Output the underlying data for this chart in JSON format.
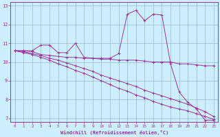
{
  "xlabel": "Windchill (Refroidissement éolien,°C)",
  "bg_color": "#cceeff",
  "line_color": "#993399",
  "grid_color": "#99bbcc",
  "xlim": [
    -0.5,
    23.5
  ],
  "ylim": [
    6.8,
    13.2
  ],
  "yticks": [
    7,
    8,
    9,
    10,
    11,
    12,
    13
  ],
  "xticks": [
    0,
    1,
    2,
    3,
    4,
    5,
    6,
    7,
    8,
    9,
    10,
    11,
    12,
    13,
    14,
    15,
    16,
    17,
    18,
    19,
    20,
    21,
    22,
    23
  ],
  "series": [
    {
      "x": [
        0,
        1,
        2,
        3,
        4,
        5,
        6,
        7,
        8,
        9,
        10,
        11,
        12,
        13,
        14,
        15,
        16,
        17,
        18,
        19,
        20,
        21,
        22,
        23
      ],
      "y": [
        10.6,
        10.6,
        10.6,
        10.9,
        10.9,
        10.5,
        10.5,
        11.0,
        10.25,
        10.2,
        10.2,
        10.2,
        10.45,
        12.55,
        12.75,
        12.2,
        12.55,
        12.5,
        9.9,
        8.4,
        7.85,
        7.5,
        6.9,
        6.9
      ]
    },
    {
      "x": [
        0,
        1,
        2,
        3,
        4,
        5,
        6,
        7,
        8,
        9,
        10,
        11,
        12,
        13,
        14,
        15,
        16,
        17,
        18,
        19,
        20,
        21,
        22,
        23
      ],
      "y": [
        10.6,
        10.6,
        10.55,
        10.4,
        10.35,
        10.3,
        10.25,
        10.25,
        10.2,
        10.2,
        10.15,
        10.15,
        10.1,
        10.1,
        10.1,
        10.05,
        10.0,
        10.0,
        10.0,
        9.9,
        9.9,
        9.85,
        9.8,
        9.8
      ]
    },
    {
      "x": [
        0,
        1,
        2,
        3,
        4,
        5,
        6,
        7,
        8,
        9,
        10,
        11,
        12,
        13,
        14,
        15,
        16,
        17,
        18,
        19,
        20,
        21,
        22,
        23
      ],
      "y": [
        10.6,
        10.55,
        10.45,
        10.35,
        10.2,
        10.1,
        9.95,
        9.8,
        9.65,
        9.5,
        9.3,
        9.15,
        9.0,
        8.85,
        8.7,
        8.5,
        8.35,
        8.2,
        8.05,
        7.9,
        7.75,
        7.55,
        7.35,
        7.1
      ]
    },
    {
      "x": [
        0,
        1,
        2,
        3,
        4,
        5,
        6,
        7,
        8,
        9,
        10,
        11,
        12,
        13,
        14,
        15,
        16,
        17,
        18,
        19,
        20,
        21,
        22,
        23
      ],
      "y": [
        10.6,
        10.5,
        10.4,
        10.25,
        10.1,
        9.9,
        9.75,
        9.55,
        9.4,
        9.2,
        9.0,
        8.8,
        8.6,
        8.45,
        8.25,
        8.1,
        7.9,
        7.75,
        7.6,
        7.5,
        7.4,
        7.25,
        7.1,
        6.95
      ]
    }
  ]
}
